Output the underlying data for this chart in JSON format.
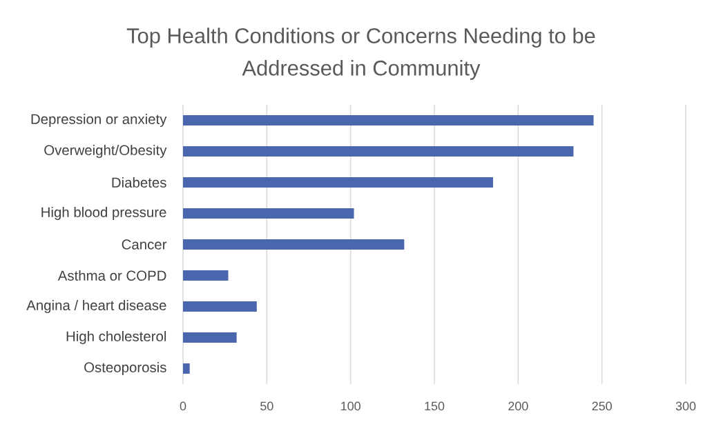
{
  "chart_data": {
    "type": "bar",
    "orientation": "horizontal",
    "title": "Top Health Conditions or Concerns Needing to be Addressed in Community",
    "categories": [
      "Depression or anxiety",
      "Overweight/Obesity",
      "Diabetes",
      "High blood pressure",
      "Cancer",
      "Asthma or COPD",
      "Angina / heart disease",
      "High cholesterol",
      "Osteoporosis"
    ],
    "values": [
      245,
      233,
      185,
      102,
      132,
      27,
      44,
      32,
      4
    ],
    "color": "#4a66ac",
    "xlim": [
      0,
      300
    ],
    "xticks": [
      0,
      50,
      100,
      150,
      200,
      250,
      300
    ],
    "grid": "x"
  }
}
